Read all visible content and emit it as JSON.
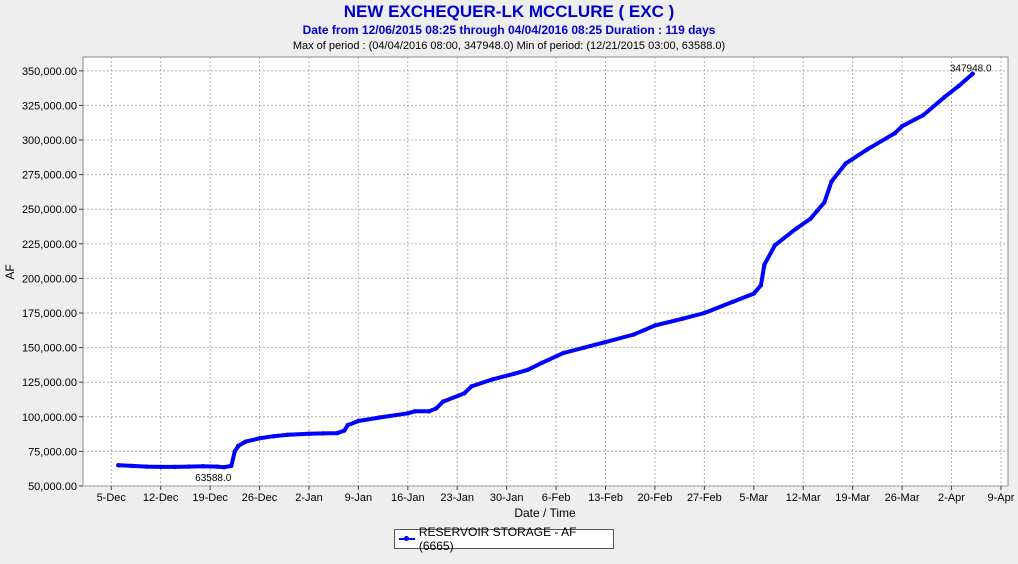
{
  "chart_data": {
    "type": "line",
    "title": "NEW EXCHEQUER-LK MCCLURE ( EXC )",
    "subtitle": "Date from 12/06/2015 08:25 through 04/04/2016 08:25 Duration : 119 days",
    "subtitle2": "Max of period : (04/04/2016 08:00, 347948.0)  Min of period: (12/21/2015 03:00,  63588.0)",
    "xlabel": "Date / Time",
    "ylabel": "AF",
    "x_start": "2015-12-06",
    "xlim": [
      "2015-12-01",
      "2016-04-10"
    ],
    "ylim": [
      50000,
      360000
    ],
    "grid": true,
    "x_ticks": [
      {
        "date": "2015-12-05",
        "label": "5-Dec"
      },
      {
        "date": "2015-12-12",
        "label": "12-Dec"
      },
      {
        "date": "2015-12-19",
        "label": "19-Dec"
      },
      {
        "date": "2015-12-26",
        "label": "26-Dec"
      },
      {
        "date": "2016-01-02",
        "label": "2-Jan"
      },
      {
        "date": "2016-01-09",
        "label": "9-Jan"
      },
      {
        "date": "2016-01-16",
        "label": "16-Jan"
      },
      {
        "date": "2016-01-23",
        "label": "23-Jan"
      },
      {
        "date": "2016-01-30",
        "label": "30-Jan"
      },
      {
        "date": "2016-02-06",
        "label": "6-Feb"
      },
      {
        "date": "2016-02-13",
        "label": "13-Feb"
      },
      {
        "date": "2016-02-20",
        "label": "20-Feb"
      },
      {
        "date": "2016-02-27",
        "label": "27-Feb"
      },
      {
        "date": "2016-03-05",
        "label": "5-Mar"
      },
      {
        "date": "2016-03-12",
        "label": "12-Mar"
      },
      {
        "date": "2016-03-19",
        "label": "19-Mar"
      },
      {
        "date": "2016-03-26",
        "label": "26-Mar"
      },
      {
        "date": "2016-04-02",
        "label": "2-Apr"
      },
      {
        "date": "2016-04-09",
        "label": "9-Apr"
      }
    ],
    "y_ticks": [
      {
        "value": 50000,
        "label": "50,000.00"
      },
      {
        "value": 75000,
        "label": "75,000.00"
      },
      {
        "value": 100000,
        "label": "100,000.00"
      },
      {
        "value": 125000,
        "label": "125,000.00"
      },
      {
        "value": 150000,
        "label": "150,000.00"
      },
      {
        "value": 175000,
        "label": "175,000.00"
      },
      {
        "value": 200000,
        "label": "200,000.00"
      },
      {
        "value": 225000,
        "label": "225,000.00"
      },
      {
        "value": 250000,
        "label": "250,000.00"
      },
      {
        "value": 275000,
        "label": "275,000.00"
      },
      {
        "value": 300000,
        "label": "300,000.00"
      },
      {
        "value": 325000,
        "label": "325,000.00"
      },
      {
        "value": 350000,
        "label": "350,000.00"
      }
    ],
    "series": [
      {
        "name": "RESERVOIR STORAGE - AF (6665)",
        "color": "#0000ff",
        "points": [
          [
            "2015-12-06",
            65000
          ],
          [
            "2015-12-08",
            64500
          ],
          [
            "2015-12-10",
            64000
          ],
          [
            "2015-12-12",
            63800
          ],
          [
            "2015-12-14",
            63800
          ],
          [
            "2015-12-16",
            64000
          ],
          [
            "2015-12-18",
            64300
          ],
          [
            "2015-12-20",
            64000
          ],
          [
            "2015-12-21",
            63600
          ],
          [
            "2015-12-22",
            64500
          ],
          [
            "2015-12-22.5",
            75000
          ],
          [
            "2015-12-23",
            79000
          ],
          [
            "2015-12-24",
            82000
          ],
          [
            "2015-12-26",
            84500
          ],
          [
            "2015-12-28",
            86000
          ],
          [
            "2015-12-30",
            87000
          ],
          [
            "2016-01-02",
            87800
          ],
          [
            "2016-01-04",
            88000
          ],
          [
            "2016-01-06",
            88200
          ],
          [
            "2016-01-07",
            90000
          ],
          [
            "2016-01-07.5",
            94000
          ],
          [
            "2016-01-09",
            97000
          ],
          [
            "2016-01-12",
            99500
          ],
          [
            "2016-01-16",
            102500
          ],
          [
            "2016-01-17",
            104000
          ],
          [
            "2016-01-19",
            104000
          ],
          [
            "2016-01-20",
            106000
          ],
          [
            "2016-01-21",
            111000
          ],
          [
            "2016-01-24",
            117000
          ],
          [
            "2016-01-25",
            122000
          ],
          [
            "2016-01-28",
            127000
          ],
          [
            "2016-01-31",
            131000
          ],
          [
            "2016-02-02",
            134000
          ],
          [
            "2016-02-04",
            139000
          ],
          [
            "2016-02-07",
            146000
          ],
          [
            "2016-02-10",
            150000
          ],
          [
            "2016-02-13",
            154000
          ],
          [
            "2016-02-17",
            159500
          ],
          [
            "2016-02-20",
            166000
          ],
          [
            "2016-02-24",
            171000
          ],
          [
            "2016-02-27",
            175000
          ],
          [
            "2016-03-02",
            183000
          ],
          [
            "2016-03-05",
            189000
          ],
          [
            "2016-03-06",
            195000
          ],
          [
            "2016-03-06.5",
            210000
          ],
          [
            "2016-03-08",
            224000
          ],
          [
            "2016-03-11",
            236000
          ],
          [
            "2016-03-13",
            243000
          ],
          [
            "2016-03-14",
            249000
          ],
          [
            "2016-03-15",
            255000
          ],
          [
            "2016-03-16",
            270000
          ],
          [
            "2016-03-18",
            283000
          ],
          [
            "2016-03-21",
            293000
          ],
          [
            "2016-03-25",
            305000
          ],
          [
            "2016-03-26",
            310000
          ],
          [
            "2016-03-29",
            318000
          ],
          [
            "2016-04-01",
            331000
          ],
          [
            "2016-04-03",
            339000
          ],
          [
            "2016-04-05",
            347900
          ]
        ]
      }
    ],
    "annotations": [
      {
        "label": "63588.0",
        "date": "2015-12-21",
        "value": 63588
      },
      {
        "label": "347948.0",
        "date": "2016-04-05",
        "value": 347948
      }
    ]
  }
}
